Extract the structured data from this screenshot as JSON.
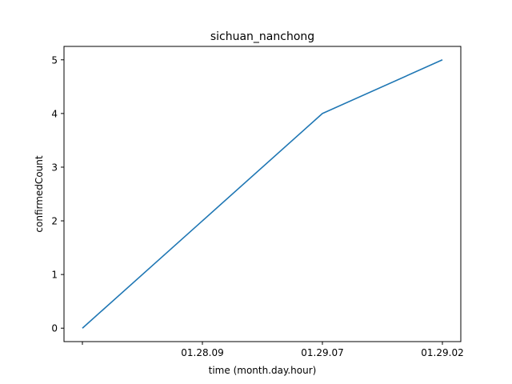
{
  "chart_data": {
    "type": "line",
    "title": "sichuan_nanchong",
    "xlabel": "time (month.day.hour)",
    "ylabel": "confirmedCount",
    "categories": [
      "",
      "01.28.09",
      "01.29.07",
      "01.29.02"
    ],
    "series": [
      {
        "values": [
          0,
          2,
          4,
          5
        ],
        "color": "#1f77b4"
      }
    ],
    "ylim": [
      -0.25,
      5.25
    ],
    "yticks": [
      0,
      1,
      2,
      3,
      4,
      5
    ],
    "grid": false,
    "legend": "none"
  }
}
